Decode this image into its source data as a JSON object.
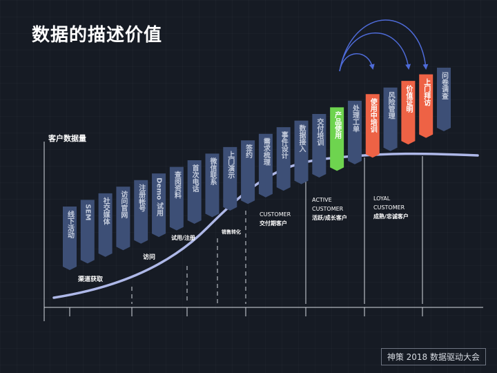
{
  "title": "数据的描述价值",
  "footer": "神策 2018 数据驱动大会",
  "axis_label": "客户数据量",
  "stage_labels": [
    {
      "id": "channel",
      "text": "渠道获取"
    },
    {
      "id": "visit",
      "text": "访问"
    },
    {
      "id": "trial",
      "text": "试用/注册"
    },
    {
      "id": "conversion",
      "text": "销售转化"
    },
    {
      "id": "customer",
      "lines": [
        "CUSTOMER",
        "交付期客户"
      ]
    },
    {
      "id": "active",
      "lines": [
        "ACTIVE",
        "CUSTOMER",
        "活跃/成长客户"
      ]
    },
    {
      "id": "loyal",
      "lines": [
        "LOYAL",
        "CUSTOMER",
        "成熟/忠诚客户"
      ]
    }
  ],
  "steps": [
    {
      "id": "offline-event",
      "label": "线下活动",
      "type": "normal"
    },
    {
      "id": "sem",
      "label": "SEM",
      "type": "normal"
    },
    {
      "id": "social-media",
      "label": "社交媒体",
      "type": "normal"
    },
    {
      "id": "visit-website",
      "label": "访问官网",
      "type": "normal"
    },
    {
      "id": "register-account",
      "label": "注册帐号",
      "type": "normal"
    },
    {
      "id": "demo-trial",
      "label": "Demo 试用",
      "type": "normal"
    },
    {
      "id": "view-materials",
      "label": "查阅资料",
      "type": "normal"
    },
    {
      "id": "first-call",
      "label": "首次电话",
      "type": "normal"
    },
    {
      "id": "wechat-contact",
      "label": "微信联系",
      "type": "normal"
    },
    {
      "id": "onsite-demo",
      "label": "上门演示",
      "type": "normal"
    },
    {
      "id": "sign-contract",
      "label": "签约",
      "type": "normal"
    },
    {
      "id": "requirement-review",
      "label": "需求梳理",
      "type": "normal"
    },
    {
      "id": "event-design",
      "label": "事件设计",
      "type": "normal"
    },
    {
      "id": "data-integration",
      "label": "数据接入",
      "type": "normal"
    },
    {
      "id": "delivery-training",
      "label": "交付培训",
      "type": "normal"
    },
    {
      "id": "product-usage",
      "label": "产品使用",
      "type": "green"
    },
    {
      "id": "ticket-handling",
      "label": "处理工单",
      "type": "normal"
    },
    {
      "id": "in-use-training",
      "label": "使用中培训",
      "type": "red"
    },
    {
      "id": "risk-management",
      "label": "风险管理",
      "type": "normal"
    },
    {
      "id": "value-proof",
      "label": "价值证明",
      "type": "red"
    },
    {
      "id": "onsite-visit",
      "label": "上门拜访",
      "type": "red"
    },
    {
      "id": "survey",
      "label": "问卷调查",
      "type": "normal"
    }
  ],
  "colors": {
    "normal": "#3d4f76",
    "green": "#6ed44f",
    "red": "#ee6245",
    "curve": "#aeb8e8",
    "arrow": "#4e6bd8"
  }
}
